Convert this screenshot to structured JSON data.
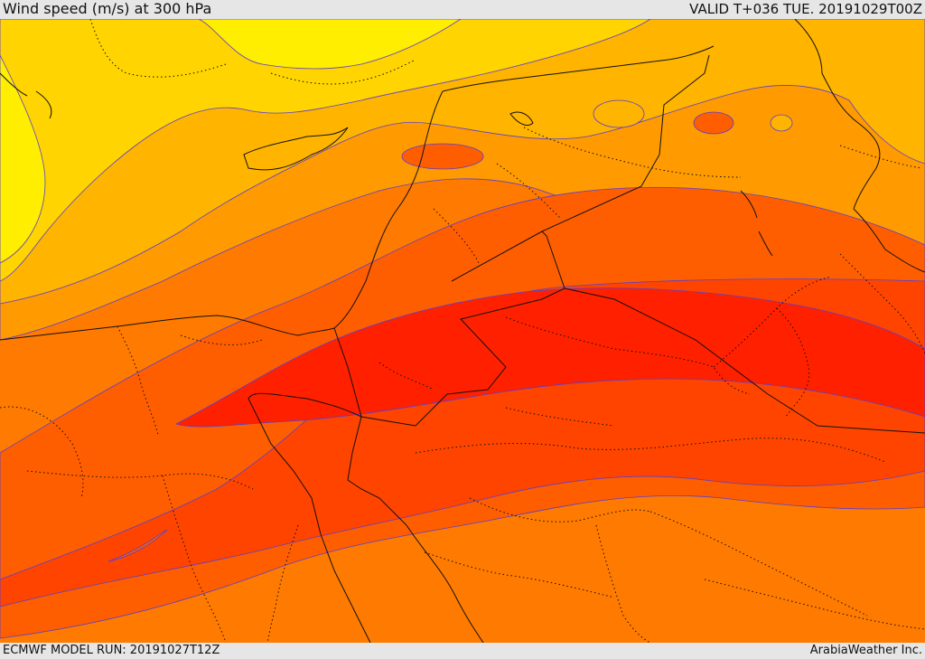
{
  "header": {
    "title": "Wind speed (m/s) at 300 hPa",
    "valid": "VALID T+036 TUE. 20191029T00Z"
  },
  "footer": {
    "model_run": "ECMWF MODEL RUN: 20191027T12Z",
    "credit": "ArabiaWeather Inc."
  },
  "colors": {
    "band_yellow": "#ffee00",
    "band_light_yellow": "#ffd400",
    "band_gold": "#ffb400",
    "band_light_orange": "#ff9a00",
    "band_orange": "#ff7a00",
    "band_dark_orange": "#ff5e00",
    "band_red_orange": "#ff4400",
    "band_red": "#ff2000",
    "contour_line": "#5a3fd0",
    "border_line": "#111111"
  }
}
